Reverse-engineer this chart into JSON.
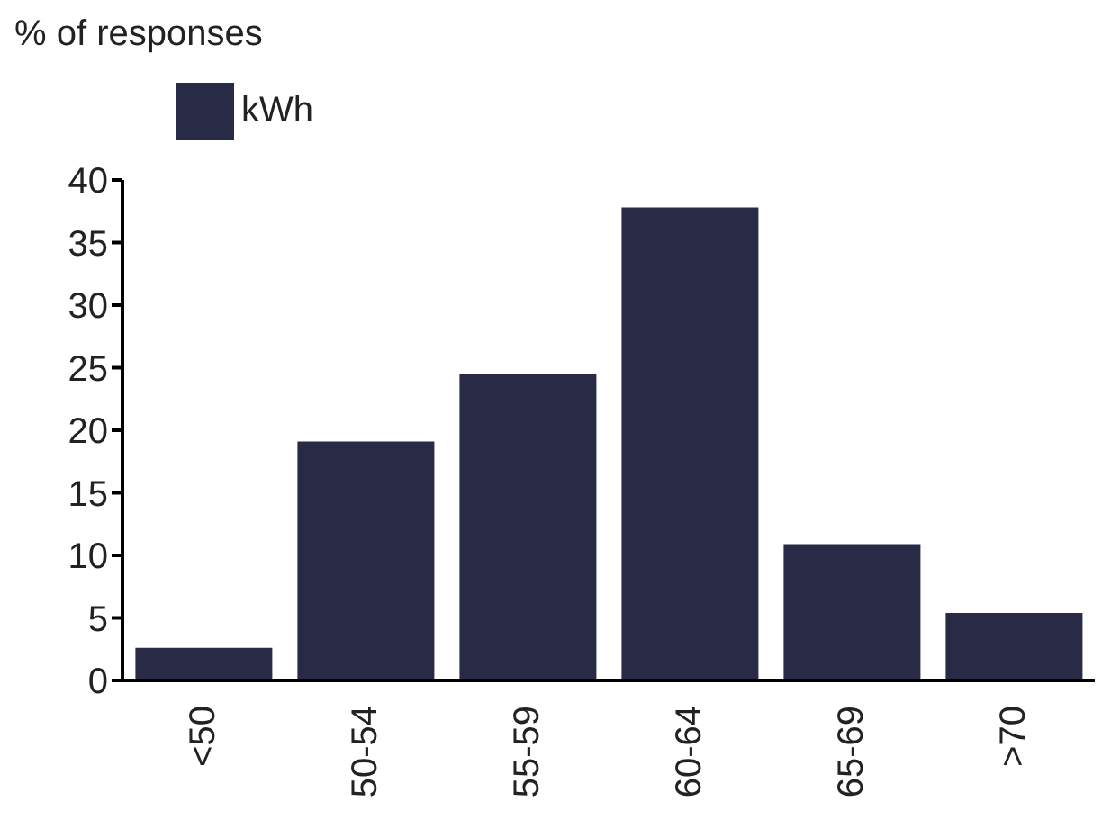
{
  "chart_data": {
    "type": "bar",
    "ylabel": "% of responses",
    "categories": [
      "<50",
      "50-54",
      "55-59",
      "60-64",
      "65-69",
      ">70"
    ],
    "series": [
      {
        "name": "kWh",
        "color": "#292a46",
        "values": [
          2.6,
          19.1,
          24.5,
          37.8,
          10.9,
          5.4
        ]
      }
    ],
    "ylim": [
      0,
      40
    ],
    "yticks": [
      0,
      5,
      10,
      15,
      20,
      25,
      30,
      35,
      40
    ],
    "grid": false,
    "legend": "top left"
  }
}
